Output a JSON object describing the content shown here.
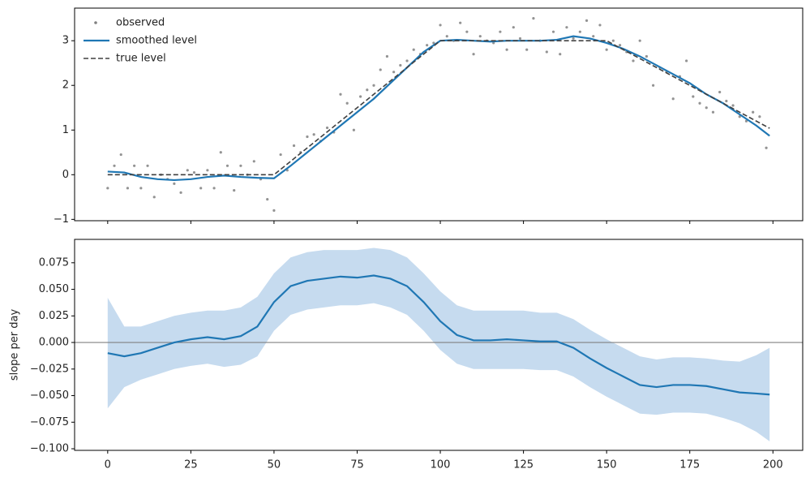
{
  "chart_data": [
    {
      "type": "line",
      "xlim": [
        -9.95,
        208.95
      ],
      "xticks": [
        0,
        25,
        50,
        75,
        100,
        125,
        150,
        175,
        200
      ],
      "xtick_labels": false,
      "ylim": [
        -1.03,
        3.73
      ],
      "yticks": [
        {
          "value": -1,
          "label": "−1"
        },
        0,
        1,
        2,
        3
      ],
      "legend": "upper left",
      "series": [
        {
          "name": "observed",
          "style": "scatter",
          "color": "#808080",
          "x": [
            0,
            2,
            4,
            6,
            8,
            10,
            12,
            14,
            16,
            18,
            20,
            22,
            24,
            26,
            28,
            30,
            32,
            34,
            36,
            38,
            40,
            42,
            44,
            46,
            48,
            50,
            52,
            54,
            56,
            58,
            60,
            62,
            64,
            66,
            68,
            70,
            72,
            74,
            76,
            78,
            80,
            82,
            84,
            86,
            88,
            90,
            92,
            94,
            96,
            98,
            100,
            102,
            104,
            106,
            108,
            110,
            112,
            114,
            116,
            118,
            120,
            122,
            124,
            126,
            128,
            130,
            132,
            134,
            136,
            138,
            140,
            142,
            144,
            146,
            148,
            150,
            152,
            154,
            156,
            158,
            160,
            162,
            164,
            166,
            168,
            170,
            172,
            174,
            176,
            178,
            180,
            182,
            184,
            186,
            188,
            190,
            192,
            194,
            196,
            198
          ],
          "values": [
            -0.3,
            0.2,
            0.45,
            -0.3,
            0.2,
            -0.3,
            0.2,
            -0.5,
            0.0,
            -0.1,
            -0.2,
            -0.4,
            0.1,
            0.05,
            -0.3,
            0.1,
            -0.3,
            0.5,
            0.2,
            -0.35,
            0.2,
            0.0,
            0.3,
            -0.1,
            -0.55,
            -0.8,
            0.45,
            0.1,
            0.65,
            0.5,
            0.85,
            0.9,
            0.75,
            1.05,
            0.95,
            1.8,
            1.6,
            1.0,
            1.75,
            1.9,
            2.0,
            2.35,
            2.65,
            2.3,
            2.45,
            2.55,
            2.8,
            2.7,
            2.9,
            2.95,
            3.35,
            3.1,
            3.0,
            3.4,
            3.2,
            2.7,
            3.1,
            3.0,
            2.95,
            3.2,
            2.8,
            3.3,
            3.05,
            2.8,
            3.5,
            3.0,
            2.75,
            3.2,
            2.7,
            3.3,
            3.05,
            3.2,
            3.45,
            3.1,
            3.35,
            2.8,
            3.0,
            2.9,
            2.75,
            2.55,
            3.0,
            2.65,
            2.0,
            2.4,
            2.3,
            1.7,
            2.2,
            2.55,
            1.75,
            1.6,
            1.5,
            1.4,
            1.85,
            1.65,
            1.55,
            1.3,
            1.2,
            1.4,
            1.3,
            0.6
          ]
        },
        {
          "name": "smoothed level",
          "style": "solid",
          "color": "#1f77b4",
          "x": [
            0,
            5,
            10,
            15,
            20,
            25,
            30,
            35,
            40,
            45,
            50,
            55,
            60,
            65,
            70,
            75,
            80,
            85,
            90,
            95,
            100,
            105,
            110,
            115,
            120,
            125,
            130,
            135,
            140,
            145,
            150,
            155,
            160,
            165,
            170,
            175,
            180,
            185,
            190,
            195,
            199
          ],
          "values": [
            0.07,
            0.05,
            -0.05,
            -0.1,
            -0.12,
            -0.1,
            -0.05,
            -0.02,
            -0.05,
            -0.07,
            -0.08,
            0.2,
            0.5,
            0.8,
            1.1,
            1.4,
            1.7,
            2.05,
            2.4,
            2.75,
            3.0,
            3.02,
            3.0,
            2.98,
            3.0,
            3.0,
            3.0,
            3.02,
            3.1,
            3.05,
            2.95,
            2.82,
            2.65,
            2.45,
            2.25,
            2.05,
            1.8,
            1.6,
            1.35,
            1.1,
            0.87
          ]
        },
        {
          "name": "true level",
          "style": "dashed",
          "color": "#404040",
          "x": [
            0,
            50,
            100,
            150,
            199
          ],
          "values": [
            0,
            0,
            3,
            3,
            1.04
          ]
        }
      ]
    },
    {
      "type": "line",
      "xlim": [
        -9.95,
        208.95
      ],
      "xticks": [
        0,
        25,
        50,
        75,
        100,
        125,
        150,
        175,
        200
      ],
      "ylim": [
        -0.1015,
        0.097
      ],
      "yticks": [
        {
          "value": -0.1,
          "label": "−0.100"
        },
        {
          "value": -0.075,
          "label": "−0.075"
        },
        {
          "value": -0.05,
          "label": "−0.050"
        },
        {
          "value": -0.025,
          "label": "−0.025"
        },
        {
          "value": 0,
          "label": "0.000"
        },
        0.025,
        {
          "value": 0.05,
          "label": "0.050"
        },
        0.075
      ],
      "ylabel": "slope per day",
      "hline": 0,
      "hline_color": "#808080",
      "band": {
        "color": "#c6dbef",
        "x": [
          0,
          5,
          10,
          15,
          20,
          25,
          30,
          35,
          40,
          45,
          50,
          55,
          60,
          65,
          70,
          75,
          80,
          85,
          90,
          95,
          100,
          105,
          110,
          115,
          120,
          125,
          130,
          135,
          140,
          145,
          150,
          155,
          160,
          165,
          170,
          175,
          180,
          185,
          190,
          195,
          199
        ],
        "upper": [
          0.042,
          0.015,
          0.015,
          0.02,
          0.025,
          0.028,
          0.03,
          0.03,
          0.033,
          0.043,
          0.065,
          0.08,
          0.085,
          0.087,
          0.087,
          0.087,
          0.089,
          0.087,
          0.08,
          0.065,
          0.048,
          0.035,
          0.03,
          0.03,
          0.03,
          0.03,
          0.028,
          0.028,
          0.022,
          0.012,
          0.003,
          -0.005,
          -0.013,
          -0.016,
          -0.014,
          -0.014,
          -0.015,
          -0.017,
          -0.018,
          -0.012,
          -0.005
        ],
        "lower": [
          -0.062,
          -0.042,
          -0.035,
          -0.03,
          -0.025,
          -0.022,
          -0.02,
          -0.023,
          -0.021,
          -0.013,
          0.011,
          0.026,
          0.031,
          0.033,
          0.035,
          0.035,
          0.037,
          0.033,
          0.026,
          0.011,
          -0.007,
          -0.02,
          -0.025,
          -0.025,
          -0.025,
          -0.025,
          -0.026,
          -0.026,
          -0.032,
          -0.042,
          -0.051,
          -0.059,
          -0.067,
          -0.068,
          -0.066,
          -0.066,
          -0.067,
          -0.071,
          -0.076,
          -0.084,
          -0.093
        ]
      },
      "series": [
        {
          "style": "solid",
          "color": "#1f77b4",
          "x": [
            0,
            5,
            10,
            15,
            20,
            25,
            30,
            35,
            40,
            45,
            50,
            55,
            60,
            65,
            70,
            75,
            80,
            85,
            90,
            95,
            100,
            105,
            110,
            115,
            120,
            125,
            130,
            135,
            140,
            145,
            150,
            155,
            160,
            165,
            170,
            175,
            180,
            185,
            190,
            195,
            199
          ],
          "values": [
            -0.01,
            -0.013,
            -0.01,
            -0.005,
            0.0,
            0.003,
            0.005,
            0.003,
            0.006,
            0.015,
            0.038,
            0.053,
            0.058,
            0.06,
            0.062,
            0.061,
            0.063,
            0.06,
            0.053,
            0.038,
            0.02,
            0.007,
            0.002,
            0.002,
            0.003,
            0.002,
            0.001,
            0.001,
            -0.005,
            -0.015,
            -0.024,
            -0.032,
            -0.04,
            -0.042,
            -0.04,
            -0.04,
            -0.041,
            -0.044,
            -0.047,
            -0.048,
            -0.049
          ]
        }
      ]
    }
  ]
}
